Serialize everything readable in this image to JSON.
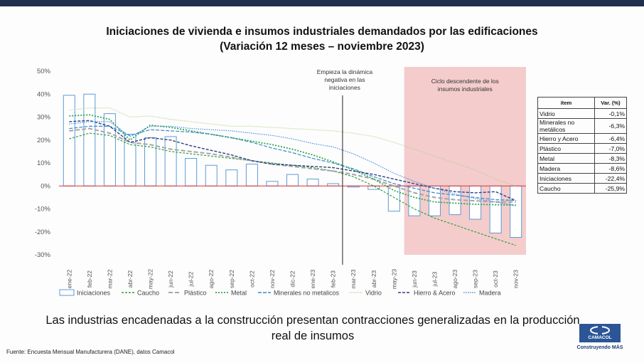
{
  "title_line1": "Iniciaciones de vivienda e insumos industriales demandados por las edificaciones",
  "title_line2": "(Variación 12 meses – noviembre 2023)",
  "subtitle": "Las industrias encadenadas a la construcción presentan contracciones generalizadas en la producción real de insumos",
  "source": "Fuente: Encuesta Mensual Manufacturera (DANE), datos Camacol",
  "logo": {
    "name": "CAMACOL",
    "tagline": "Construyendo MÁS"
  },
  "table": {
    "headers": [
      "ítem",
      "Var. (%)"
    ],
    "rows": [
      {
        "item": "Vidrio",
        "value": "-0,1%"
      },
      {
        "item": "Minerales no metálicos",
        "value": "-6,3%"
      },
      {
        "item": "Hierro y Acero",
        "value": "-6,4%"
      },
      {
        "item": "Plástico",
        "value": "-7,0%"
      },
      {
        "item": "Metal",
        "value": "-8,3%"
      },
      {
        "item": "Madera",
        "value": "-8,6%"
      },
      {
        "item": "Iniciaciones",
        "value": "-22,4%"
      },
      {
        "item": "Caucho",
        "value": "-25,9%"
      }
    ]
  },
  "colors": {
    "Iniciaciones": "#5b9bd5",
    "Caucho": "#2e9e3e",
    "Plástico": "#a6a6a6",
    "Metal": "#2fa84f",
    "Minerales no metalicos": "#3a88c8",
    "Vidrio": "#a9d18e",
    "Hierro & Acero": "#2f3f86",
    "Madera": "#4a8fe0",
    "shade": "#f4cccc",
    "zero_line": "#e03030"
  },
  "chart_data": {
    "type": "bar",
    "categories": [
      "ene-22",
      "feb-22",
      "mar-22",
      "abr-22",
      "may-22",
      "jun-22",
      "jul-22",
      "ago-22",
      "sep-22",
      "oct-22",
      "nov-22",
      "dic-22",
      "ene-23",
      "feb-23",
      "mar-23",
      "abr-23",
      "may-23",
      "jun-23",
      "jul-23",
      "ago-23",
      "sep-23",
      "oct-23",
      "nov-23"
    ],
    "ylim": [
      -30,
      50
    ],
    "yticks": [
      "-30%",
      "-20%",
      "-10%",
      "0%",
      "10%",
      "20%",
      "30%",
      "40%",
      "50%"
    ],
    "legend_position": "bottom",
    "annotations": {
      "vertical_line_label": "Empieza la dinámica negativa en las iniciaciones",
      "shaded_label": "Ciclo descendente de los insumos industriales",
      "vertical_line_at": "mar-23",
      "shaded_from": "jun-23",
      "shaded_to": "nov-23"
    },
    "bars": {
      "name": "Iniciaciones",
      "values": [
        39.5,
        40,
        31.5,
        22.5,
        21,
        21.5,
        12,
        9,
        7,
        9.5,
        2,
        5,
        3,
        1,
        -0.5,
        -1.5,
        -11,
        -13,
        -13,
        -12.5,
        -14.5,
        -20.5,
        -22.4
      ]
    },
    "series": [
      {
        "name": "Caucho",
        "values": [
          20.5,
          23,
          22,
          18,
          17,
          15,
          14,
          13,
          12,
          11,
          10,
          9,
          8,
          6.5,
          4,
          0,
          -5,
          -10,
          -14,
          -17,
          -20,
          -23,
          -25.9
        ]
      },
      {
        "name": "Plástico",
        "values": [
          24,
          25,
          23,
          19,
          18,
          16,
          15,
          14,
          12.5,
          11,
          9.5,
          8.5,
          7.5,
          6.5,
          5,
          3,
          0,
          -3,
          -5,
          -6,
          -6.5,
          -7,
          -7
        ]
      },
      {
        "name": "Metal",
        "values": [
          30.5,
          31,
          29,
          20,
          26.5,
          25.5,
          24,
          22.5,
          21,
          19.5,
          18,
          16,
          13.5,
          10.5,
          7,
          3,
          -2,
          -5,
          -7,
          -7.5,
          -8,
          -8.2,
          -8.3
        ]
      },
      {
        "name": "Minerales no metalicos",
        "values": [
          25,
          26,
          26,
          22,
          24.5,
          24,
          23.5,
          22.5,
          21,
          19,
          16.5,
          14.5,
          12,
          10,
          7.5,
          4,
          1,
          -1,
          -3,
          -4,
          -5,
          -6,
          -6.3
        ]
      },
      {
        "name": "Vidrio",
        "values": [
          33,
          34,
          34,
          30,
          30.5,
          29,
          28,
          27,
          26,
          26,
          25.5,
          25,
          24.5,
          24,
          23,
          21.5,
          19,
          16,
          13,
          10,
          7,
          3,
          -0.1
        ]
      },
      {
        "name": "Hierro & Acero",
        "values": [
          28,
          28.5,
          26,
          19,
          21,
          20,
          17.5,
          15.5,
          13.5,
          11,
          9.5,
          9,
          8.5,
          8,
          6.5,
          5,
          3,
          1,
          -1,
          -2.5,
          -3,
          -2.5,
          -6.4
        ]
      },
      {
        "name": "Madera",
        "values": [
          27,
          28,
          28,
          21.5,
          26,
          26,
          25,
          24.5,
          24,
          23,
          22,
          20.5,
          18.5,
          17,
          14,
          10,
          5.5,
          2,
          -1,
          -3.5,
          -5.5,
          -7,
          -8.6
        ]
      }
    ]
  }
}
